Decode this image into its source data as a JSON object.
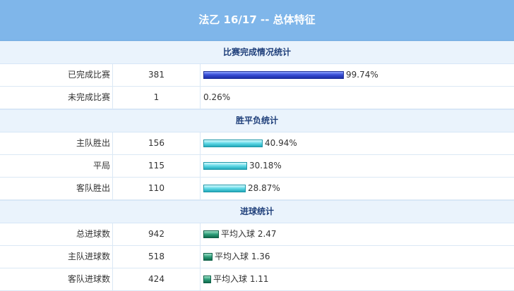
{
  "title": "法乙 16/17 -- 总体特征",
  "sections": [
    {
      "heading": "比赛完成情况统计",
      "rows": [
        {
          "label": "已完成比赛",
          "value": "381",
          "bar_text": "99.74%",
          "bar_color": "blue",
          "bar_fraction": 0.9974
        },
        {
          "label": "未完成比赛",
          "value": "1",
          "bar_text": "0.26%",
          "bar_color": "blue",
          "bar_fraction": 0.0026
        }
      ]
    },
    {
      "heading": "胜平负统计",
      "rows": [
        {
          "label": "主队胜出",
          "value": "156",
          "bar_text": "40.94%",
          "bar_color": "cyan",
          "bar_fraction": 0.4094
        },
        {
          "label": "平局",
          "value": "115",
          "bar_text": "30.18%",
          "bar_color": "cyan",
          "bar_fraction": 0.3018
        },
        {
          "label": "客队胜出",
          "value": "110",
          "bar_text": "28.87%",
          "bar_color": "cyan",
          "bar_fraction": 0.2887
        }
      ]
    },
    {
      "heading": "进球统计",
      "rows": [
        {
          "label": "总进球数",
          "value": "942",
          "bar_text": "平均入球 2.47",
          "bar_color": "green",
          "bar_fraction": 2.47
        },
        {
          "label": "主队进球数",
          "value": "518",
          "bar_text": "平均入球 1.36",
          "bar_color": "green",
          "bar_fraction": 1.36
        },
        {
          "label": "客队进球数",
          "value": "424",
          "bar_text": "平均入球 1.11",
          "bar_color": "green",
          "bar_fraction": 1.11
        }
      ]
    }
  ]
}
